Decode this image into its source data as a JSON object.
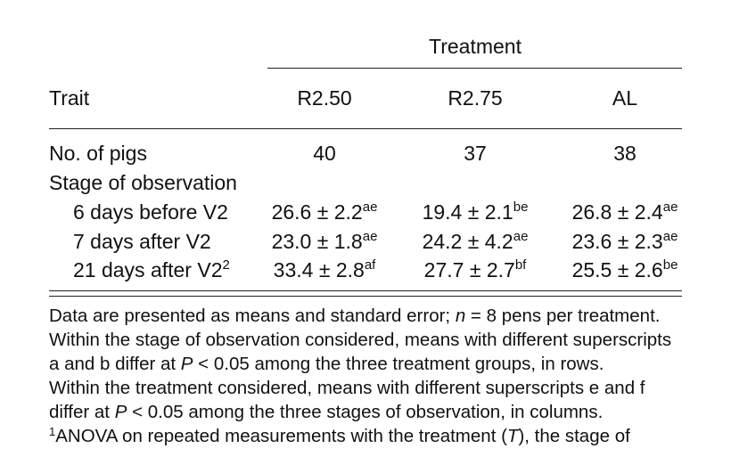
{
  "table": {
    "group_header": "Treatment",
    "header": [
      "Trait",
      "R2.50",
      "R2.75",
      "AL"
    ],
    "rows": [
      {
        "label": "No. of pigs",
        "cells": [
          {
            "text": "40"
          },
          {
            "text": "37"
          },
          {
            "text": "38"
          }
        ]
      },
      {
        "label": "Stage of observation",
        "cells": []
      },
      {
        "label": "6 days before V2",
        "cells": [
          {
            "text": "26.6 ± 2.2",
            "sup": "ae"
          },
          {
            "text": "19.4 ± 2.1",
            "sup": "be"
          },
          {
            "text": "26.8 ± 2.4",
            "sup": "ae"
          }
        ]
      },
      {
        "label": "7 days after V2",
        "cells": [
          {
            "text": "23.0 ± 1.8",
            "sup": "ae"
          },
          {
            "text": "24.2 ± 4.2",
            "sup": "ae"
          },
          {
            "text": "23.6 ± 2.3",
            "sup": "ae"
          }
        ]
      },
      {
        "label": "21 days after V2",
        "label_sup": "2",
        "cells": [
          {
            "text": "33.4 ± 2.8",
            "sup": "af"
          },
          {
            "text": "27.7 ± 2.7",
            "sup": "bf"
          },
          {
            "text": "25.5 ± 2.6",
            "sup": "be"
          }
        ]
      }
    ]
  },
  "notes": [
    [
      "Data are presented as means and standard error; ",
      "n",
      " = 8 pens per treatment."
    ],
    [
      "Within the stage of observation considered, means with different superscripts"
    ],
    [
      "a and b differ at ",
      "P",
      " < 0.05 among the three treatment groups, in rows."
    ],
    [
      "Within the treatment considered, means with different superscripts e and f"
    ],
    [
      "differ at ",
      "P",
      " < 0.05 among the three stages of observation, in columns."
    ]
  ],
  "footnote": {
    "marker": "1",
    "text": [
      "ANOVA on repeated measurements with the treatment (",
      "T",
      "), the stage of"
    ]
  }
}
